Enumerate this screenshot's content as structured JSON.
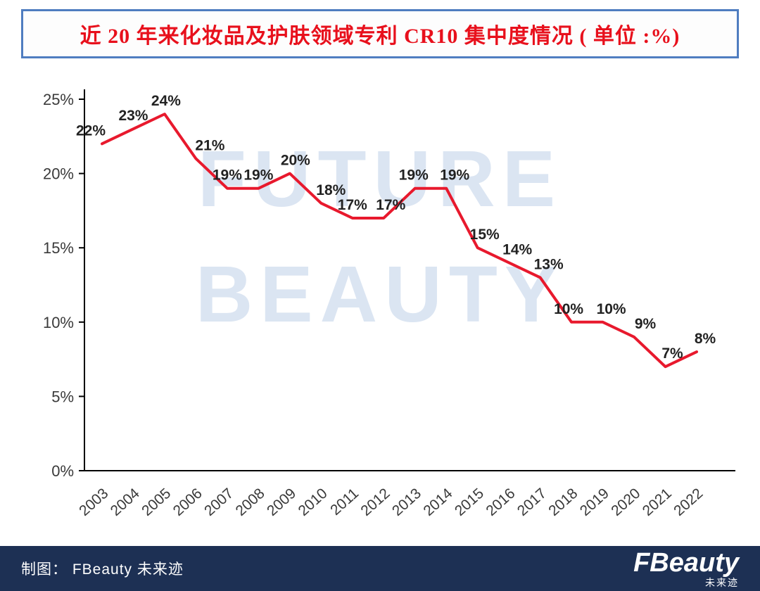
{
  "title": "近 20 年来化妆品及护肤领域专利 CR10 集中度情况 ( 单位 :%)",
  "colors": {
    "title_text": "#e8101c",
    "title_border": "#4f7dc0",
    "line": "#e8192d",
    "axis": "#000000",
    "axis_text": "#3a3a3a",
    "value_label_text": "#222222",
    "watermark": "#dbe5f2",
    "footer_bg": "#1d3054",
    "footer_text": "#ffffff"
  },
  "watermark": {
    "line1": "FUTURE",
    "line2": "BEAUTY"
  },
  "footer": {
    "credit": "制图： FBeauty 未来迹",
    "logo_main": "FBeauty",
    "logo_sub": "未来迹"
  },
  "chart_data": {
    "type": "line",
    "title": "近 20 年来化妆品及护肤领域专利 CR10 集中度情况 ( 单位 :%)",
    "x": [
      "2003",
      "2004",
      "2005",
      "2006",
      "2007",
      "2008",
      "2009",
      "2010",
      "2011",
      "2012",
      "2013",
      "2014",
      "2015",
      "2016",
      "2017",
      "2018",
      "2019",
      "2020",
      "2021",
      "2022"
    ],
    "values": [
      22,
      23,
      24,
      21,
      19,
      19,
      20,
      18,
      17,
      17,
      19,
      19,
      15,
      14,
      13,
      10,
      10,
      9,
      7,
      8
    ],
    "labels": [
      "22%",
      "23%",
      "24%",
      "21%",
      "19%",
      "19%",
      "20%",
      "18%",
      "17%",
      "17%",
      "19%",
      "19%",
      "15%",
      "14%",
      "13%",
      "10%",
      "10%",
      "9%",
      "7%",
      "8%"
    ],
    "y_ticks": [
      "0%",
      "5%",
      "10%",
      "15%",
      "20%",
      "25%"
    ],
    "y_tick_values": [
      0,
      5,
      10,
      15,
      20,
      25
    ],
    "ylim": [
      0,
      25
    ],
    "xlabel": "",
    "ylabel": "",
    "grid": false,
    "legend": "none",
    "line_color": "#e8192d"
  }
}
